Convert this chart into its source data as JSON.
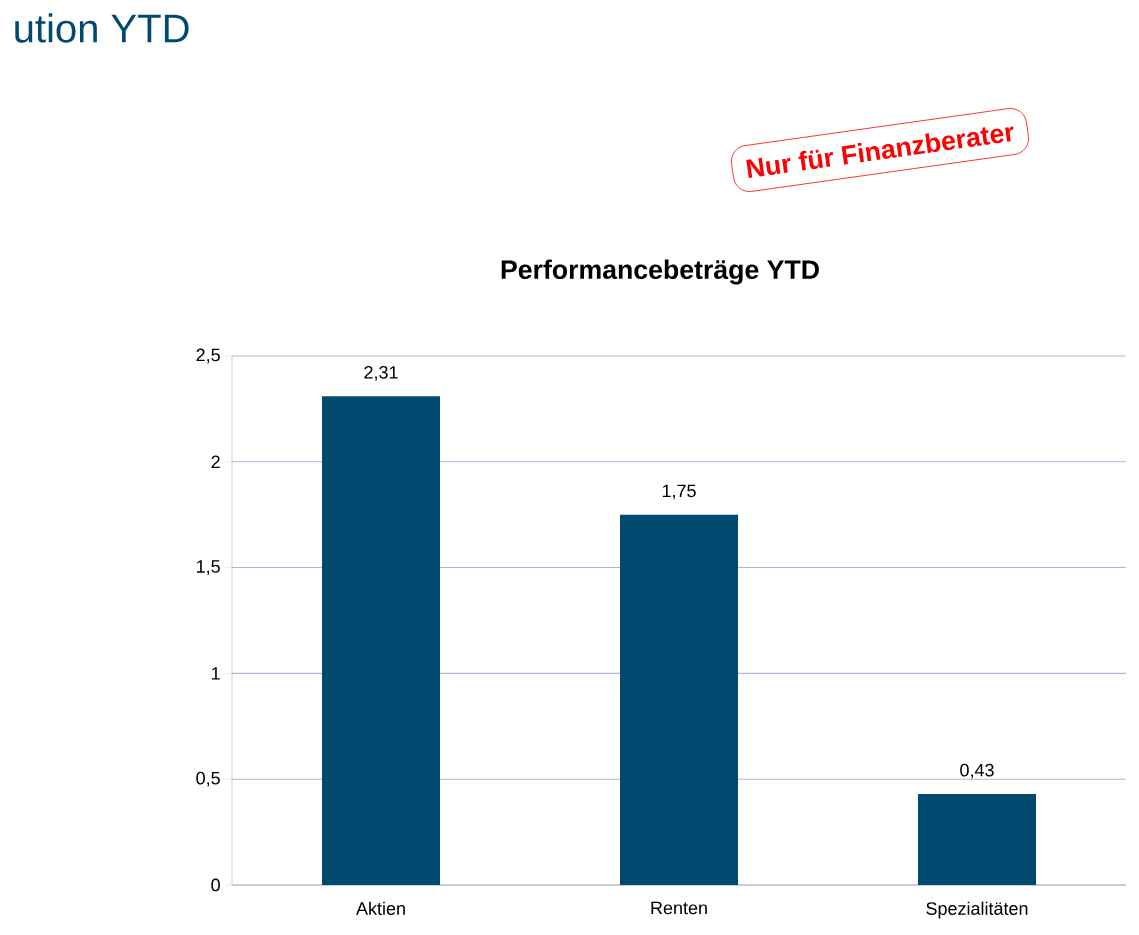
{
  "chart_data": {
    "type": "bar",
    "title": "Performancebeträge YTD",
    "categories": [
      "Aktien",
      "Renten",
      "Spezialitäten"
    ],
    "values": [
      2.31,
      1.75,
      0.43
    ],
    "value_labels": [
      "2,31",
      "1,75",
      "0,43"
    ],
    "color": "#004a6f",
    "ylim": [
      0,
      2.5
    ],
    "yticks": [
      0,
      {
        "value": 0.5,
        "label": "0,5"
      },
      1,
      {
        "value": 1.5,
        "label": "1,5"
      },
      2,
      {
        "value": 2.5,
        "label": "2,5"
      }
    ],
    "grid": "y",
    "annotations": [
      "ution YTD",
      "Nur für Finanzberater"
    ]
  }
}
